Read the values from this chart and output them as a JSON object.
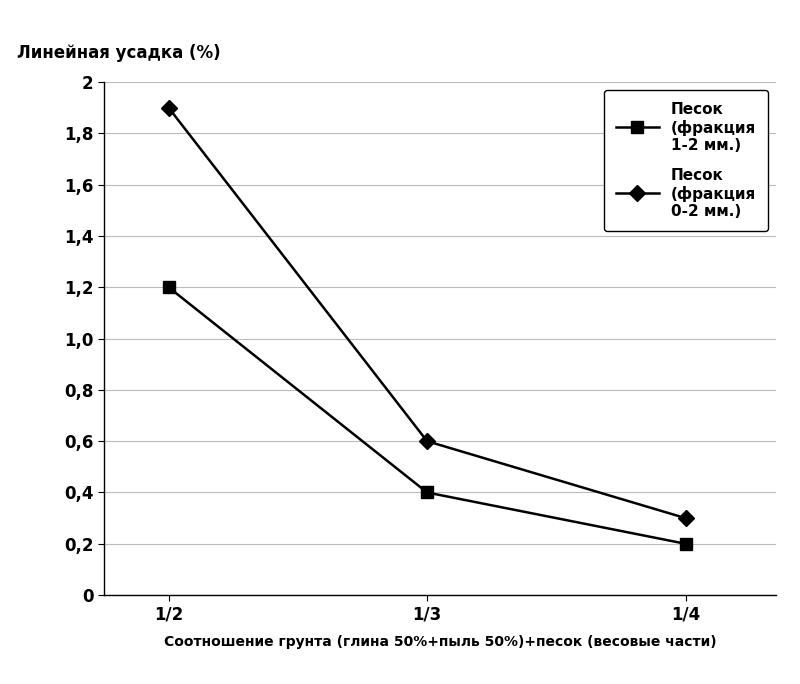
{
  "x_positions": [
    0,
    1,
    2
  ],
  "x_labels": [
    "1/2",
    "1/3",
    "1/4"
  ],
  "series1_y": [
    1.2,
    0.4,
    0.2
  ],
  "series2_y": [
    1.9,
    0.6,
    0.3
  ],
  "series1_label": "Песок\n(фракция\n1-2 мм.)",
  "series2_label": "Песок\n(фракция\n0-2 мм.)",
  "ylabel": "Линейная усадка (%)",
  "xlabel": "Соотношение грунта (глина 50%+пыль 50%)+песок (весовые части)",
  "ylim": [
    0,
    2.0
  ],
  "yticks": [
    0,
    0.2,
    0.4,
    0.6,
    0.8,
    1.0,
    1.2,
    1.4,
    1.6,
    1.8,
    2.0
  ],
  "ytick_labels": [
    "0",
    "0,2",
    "0,4",
    "0,6",
    "0,8",
    "1,0",
    "1,2",
    "1,4",
    "1,6",
    "1,8",
    "2"
  ],
  "line_color": "#000000",
  "marker_square": "s",
  "marker_diamond": "D",
  "marker_size": 8,
  "line_width": 1.8,
  "bg_color": "#ffffff",
  "grid_color": "#bbbbbb",
  "font_size_label": 11,
  "font_size_tick": 12,
  "font_size_xlabel": 10,
  "font_size_legend": 11,
  "font_size_ylabel": 12
}
